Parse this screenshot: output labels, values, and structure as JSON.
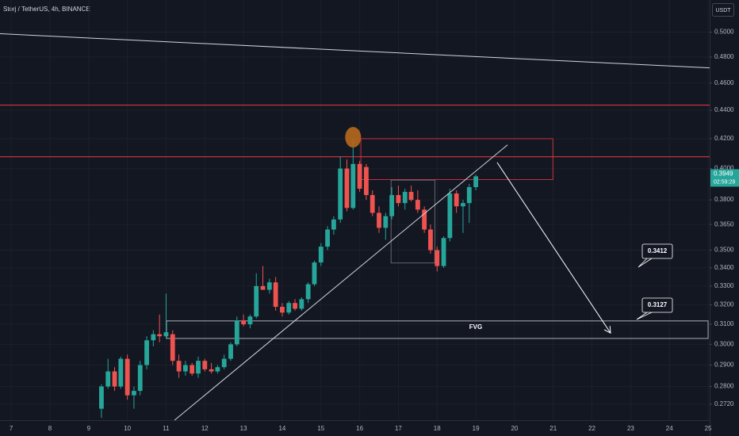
{
  "chart_data": {
    "type": "candlestick",
    "title": "Storj / TetherUS, 4h, BINANCE",
    "currency": "USDT",
    "log_scale": true,
    "grid": true,
    "up_color": "#26a69a",
    "down_color": "#ef5350",
    "xlim": [
      6.71,
      25.04
    ],
    "xticks": [
      7,
      8,
      9,
      10,
      11,
      12,
      13,
      14,
      15,
      16,
      17,
      18,
      19,
      20,
      21,
      22,
      23,
      24,
      25
    ],
    "ylim": [
      0.265,
      0.527
    ],
    "yticks": [
      {
        "value": 0.5,
        "label": "0.5000"
      },
      {
        "value": 0.48,
        "label": "0.4800"
      },
      {
        "value": 0.46,
        "label": "0.4600"
      },
      {
        "value": 0.44,
        "label": "0.4400"
      },
      {
        "value": 0.42,
        "label": "0.4200"
      },
      {
        "value": 0.4,
        "label": "0.4000"
      },
      {
        "value": 0.38,
        "label": "0.3800"
      },
      {
        "value": 0.365,
        "label": "0.3650"
      },
      {
        "value": 0.35,
        "label": "0.3500"
      },
      {
        "value": 0.34,
        "label": "0.3400"
      },
      {
        "value": 0.33,
        "label": "0.3300"
      },
      {
        "value": 0.32,
        "label": "0.3200"
      },
      {
        "value": 0.31,
        "label": "0.3100"
      },
      {
        "value": 0.3,
        "label": "0.3000"
      },
      {
        "value": 0.29,
        "label": "0.2900"
      },
      {
        "value": 0.28,
        "label": "0.2800"
      },
      {
        "value": 0.272,
        "label": "0.2720"
      }
    ],
    "x": [
      9.33,
      9.5,
      9.67,
      9.83,
      10,
      10.17,
      10.33,
      10.5,
      10.67,
      10.83,
      11,
      11.17,
      11.33,
      11.5,
      11.67,
      11.83,
      12,
      12.17,
      12.33,
      12.5,
      12.67,
      12.83,
      13,
      13.17,
      13.33,
      13.5,
      13.67,
      13.83,
      14,
      14.17,
      14.33,
      14.5,
      14.67,
      14.83,
      15,
      15.17,
      15.33,
      15.5,
      15.67,
      15.83,
      16,
      16.17,
      16.33,
      16.5,
      16.67,
      16.83,
      17,
      17.17,
      17.33,
      17.5,
      17.67,
      17.83,
      18,
      18.17,
      18.33,
      18.5,
      18.67,
      18.83,
      19
    ],
    "open": [
      0.27,
      0.28,
      0.287,
      0.28,
      0.293,
      0.276,
      0.278,
      0.29,
      0.302,
      0.305,
      0.304,
      0.305,
      0.292,
      0.287,
      0.29,
      0.286,
      0.292,
      0.288,
      0.287,
      0.289,
      0.293,
      0.3,
      0.312,
      0.31,
      0.314,
      0.33,
      0.328,
      0.332,
      0.319,
      0.316,
      0.321,
      0.318,
      0.323,
      0.331,
      0.343,
      0.352,
      0.362,
      0.368,
      0.4,
      0.375,
      0.403,
      0.401,
      0.383,
      0.372,
      0.363,
      0.37,
      0.383,
      0.378,
      0.385,
      0.38,
      0.374,
      0.362,
      0.35,
      0.341,
      0.357,
      0.384,
      0.376,
      0.378,
      0.388
    ],
    "high": [
      0.281,
      0.293,
      0.289,
      0.294,
      0.295,
      0.28,
      0.292,
      0.304,
      0.307,
      0.315,
      0.326,
      0.307,
      0.295,
      0.292,
      0.291,
      0.294,
      0.293,
      0.291,
      0.29,
      0.295,
      0.301,
      0.314,
      0.315,
      0.315,
      0.337,
      0.341,
      0.334,
      0.335,
      0.321,
      0.322,
      0.323,
      0.324,
      0.332,
      0.344,
      0.354,
      0.364,
      0.37,
      0.408,
      0.406,
      0.42,
      0.405,
      0.403,
      0.386,
      0.376,
      0.372,
      0.388,
      0.389,
      0.387,
      0.389,
      0.386,
      0.376,
      0.365,
      0.352,
      0.358,
      0.387,
      0.386,
      0.38,
      0.39,
      0.396
    ],
    "low": [
      0.266,
      0.279,
      0.278,
      0.279,
      0.274,
      0.27,
      0.276,
      0.288,
      0.299,
      0.301,
      0.303,
      0.29,
      0.284,
      0.285,
      0.285,
      0.284,
      0.287,
      0.286,
      0.286,
      0.288,
      0.292,
      0.299,
      0.309,
      0.308,
      0.313,
      0.328,
      0.326,
      0.317,
      0.314,
      0.315,
      0.317,
      0.317,
      0.321,
      0.33,
      0.341,
      0.35,
      0.359,
      0.366,
      0.373,
      0.374,
      0.385,
      0.38,
      0.37,
      0.36,
      0.356,
      0.368,
      0.376,
      0.374,
      0.379,
      0.372,
      0.36,
      0.348,
      0.338,
      0.34,
      0.355,
      0.372,
      0.36,
      0.366,
      0.386
    ],
    "close": [
      0.28,
      0.287,
      0.28,
      0.293,
      0.276,
      0.278,
      0.29,
      0.302,
      0.305,
      0.304,
      0.306,
      0.292,
      0.287,
      0.29,
      0.286,
      0.292,
      0.288,
      0.287,
      0.289,
      0.293,
      0.3,
      0.312,
      0.31,
      0.314,
      0.33,
      0.328,
      0.332,
      0.319,
      0.316,
      0.321,
      0.318,
      0.323,
      0.331,
      0.343,
      0.352,
      0.362,
      0.368,
      0.4,
      0.375,
      0.403,
      0.387,
      0.383,
      0.372,
      0.363,
      0.37,
      0.383,
      0.378,
      0.385,
      0.38,
      0.374,
      0.362,
      0.35,
      0.341,
      0.357,
      0.384,
      0.376,
      0.378,
      0.388,
      0.3949
    ],
    "last_price": 0.3949,
    "countdown": "02:59:28",
    "levels": [
      {
        "value": 0.4437,
        "color": "#f23645"
      },
      {
        "value": 0.4078,
        "color": "#f23645"
      }
    ],
    "trendlines": [
      {
        "x": [
          6.71,
          25.04
        ],
        "y": [
          0.4987,
          0.4716
        ],
        "color": "#d1d4dc"
      },
      {
        "x": [
          11.22,
          19.82
        ],
        "y": [
          0.265,
          0.4158
        ],
        "color": "#d1d4dc"
      }
    ],
    "boxes": [
      {
        "x": [
          16.03,
          20.99
        ],
        "y": [
          0.42,
          0.3928
        ],
        "color": "#f23645"
      },
      {
        "x": [
          16.81,
          17.94
        ],
        "y": [
          0.3925,
          0.3427
        ],
        "color": "#787b86"
      },
      {
        "x": [
          11.01,
          25.0
        ],
        "y": [
          0.3117,
          0.3029
        ],
        "color": "#d1d4dc",
        "label": "FVG"
      }
    ],
    "arrow": {
      "x": [
        19.55,
        22.48
      ],
      "y": [
        0.404,
        0.3056
      ],
      "color": "#ffffff"
    },
    "marker": {
      "x": 15.83,
      "y": 0.421,
      "color": "#b8691c"
    },
    "callouts": [
      "0.3412",
      "0.3127"
    ]
  }
}
